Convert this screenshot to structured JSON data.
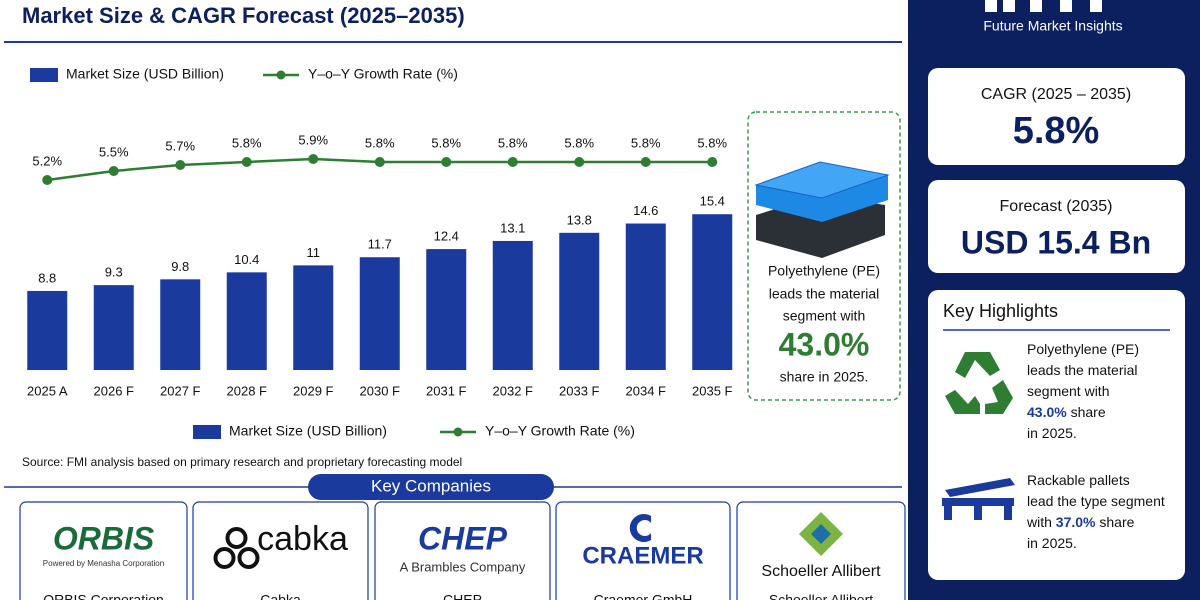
{
  "header": {
    "title": "Market Size & CAGR Forecast (2025–2035)",
    "brand": "Future Market Insights"
  },
  "chart_data": {
    "type": "combo",
    "categories": [
      "2025 A",
      "2026 F",
      "2027 F",
      "2028 F",
      "2029 F",
      "2030 F",
      "2031 F",
      "2032 F",
      "2033 F",
      "2034 F",
      "2035 F"
    ],
    "series": [
      {
        "name": "Market Size (USD Billion)",
        "type": "bar",
        "color": "#1a3a9e",
        "values": [
          8.8,
          9.3,
          9.8,
          10.4,
          11.0,
          11.7,
          12.4,
          13.1,
          13.8,
          14.6,
          15.4
        ]
      },
      {
        "name": "Y–o–Y Growth Rate (%)",
        "type": "line",
        "axis": "y2",
        "color": "#2e7d32",
        "values": [
          5.2,
          5.5,
          5.7,
          5.8,
          5.9,
          5.8,
          5.8,
          5.8,
          5.8,
          5.8,
          5.8
        ],
        "value_labels": [
          "5.2%",
          "5.5%",
          "5.7%",
          "5.8%",
          "5.9%",
          "5.8%",
          "5.8%",
          "5.8%",
          "5.8%",
          "5.8%",
          "5.8%"
        ]
      }
    ],
    "ylim": [
      2,
      18
    ],
    "y2lim": [
      4.8,
      6.2
    ],
    "legend": "top"
  },
  "source": "Source: FMI analysis based on primary research and proprietary forecasting model",
  "callout": {
    "lines": [
      "Polyethylene (PE)",
      "leads the material",
      "segment with"
    ],
    "value": "43.0%",
    "tail": "share in 2025."
  },
  "sidebar": {
    "cagr": {
      "label": "CAGR (2025 – 2035)",
      "value": "5.8%"
    },
    "forecast": {
      "label": "Forecast (2035)",
      "value": "USD 15.4 Bn"
    },
    "highlights": {
      "title": "Key Highlights",
      "items": [
        {
          "lines": [
            [
              {
                "text": "Polyethylene (PE)"
              }
            ],
            [
              {
                "text": "leads the material"
              }
            ],
            [
              {
                "text": "segment with"
              }
            ],
            [
              {
                "text": "43.0%",
                "bold": true
              },
              {
                "text": " share"
              }
            ],
            [
              {
                "text": "in 2025."
              }
            ]
          ]
        },
        {
          "lines": [
            [
              {
                "text": "Rackable pallets"
              }
            ],
            [
              {
                "text": "lead the type segment"
              }
            ],
            [
              {
                "text": "with "
              },
              {
                "text": "37.0%",
                "bold": true
              },
              {
                "text": " share"
              }
            ],
            [
              {
                "text": "in 2025."
              }
            ]
          ]
        }
      ]
    }
  },
  "companies": {
    "title": "Key Companies",
    "list": [
      {
        "logo": "ORBIS",
        "tagline": "Powered by Menasha Corporation",
        "name": "ORBIS Corporation"
      },
      {
        "logo": "cabka",
        "name": "Cabka"
      },
      {
        "logo": "CHEP",
        "tagline": "A Brambles Company",
        "name": "CHEP"
      },
      {
        "logo": "CRAEMER",
        "name": "Craemer GmbH"
      },
      {
        "logo": "Schoeller Allibert",
        "name": "Schoeller Allibert"
      }
    ]
  }
}
